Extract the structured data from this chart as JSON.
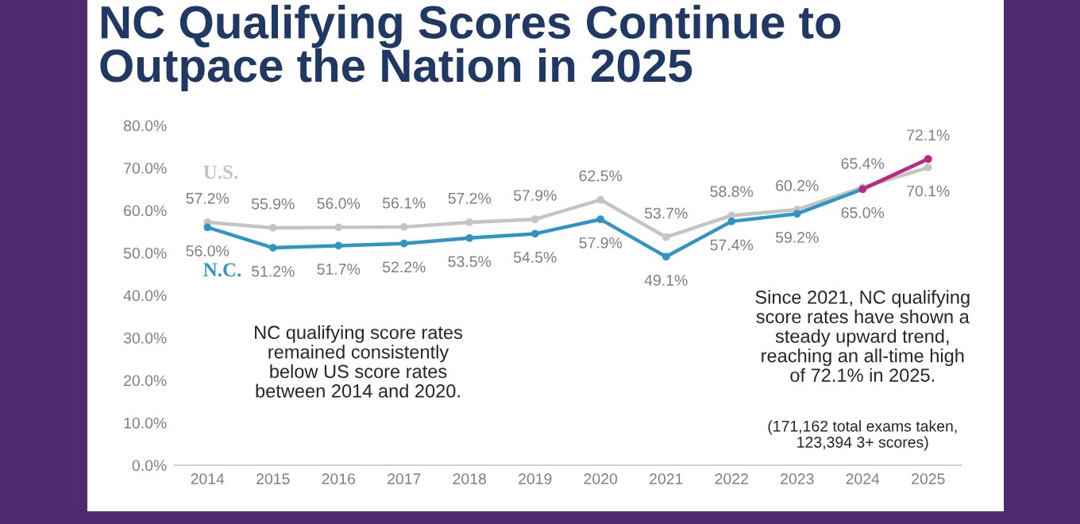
{
  "chart_data": {
    "type": "line",
    "title": "NC Qualifying Scores Continue to Outpace the Nation in 2025",
    "categories": [
      "2014",
      "2015",
      "2016",
      "2017",
      "2018",
      "2019",
      "2020",
      "2021",
      "2022",
      "2023",
      "2024",
      "2025"
    ],
    "series": [
      {
        "name": "U.S.",
        "color": "#c4c4c4",
        "values": [
          57.2,
          55.9,
          56.0,
          56.1,
          57.2,
          57.9,
          62.5,
          53.7,
          58.8,
          60.2,
          65.4,
          70.1
        ],
        "value_labels": [
          "57.2%",
          "55.9%",
          "56.0%",
          "56.1%",
          "57.2%",
          "57.9%",
          "62.5%",
          "53.7%",
          "58.8%",
          "60.2%",
          "65.4%",
          "70.1%"
        ]
      },
      {
        "name": "N.C.",
        "color": "#2e95c4",
        "colors": [
          "#2e95c4",
          "#2e95c4",
          "#2e95c4",
          "#2e95c4",
          "#2e95c4",
          "#2e95c4",
          "#2e95c4",
          "#2e95c4",
          "#2e95c4",
          "#2e95c4",
          "#2e95c4",
          "#c2267c"
        ],
        "values": [
          56.0,
          51.2,
          51.7,
          52.2,
          53.5,
          54.5,
          57.9,
          49.1,
          57.4,
          59.2,
          65.0,
          72.1
        ],
        "value_labels": [
          "56.0%",
          "51.2%",
          "51.7%",
          "52.2%",
          "53.5%",
          "54.5%",
          "57.9%",
          "49.1%",
          "57.4%",
          "59.2%",
          "65.0%",
          "72.1%"
        ]
      }
    ],
    "ylim": [
      0,
      80
    ],
    "yticks": [
      {
        "value": 0,
        "label": "0.0%"
      },
      {
        "value": 10,
        "label": "10.0%"
      },
      {
        "value": 20,
        "label": "20.0%"
      },
      {
        "value": 30,
        "label": "30.0%"
      },
      {
        "value": 40,
        "label": "40.0%"
      },
      {
        "value": 50,
        "label": "50.0%"
      },
      {
        "value": 60,
        "label": "60.0%"
      },
      {
        "value": 70,
        "label": "70.0%"
      },
      {
        "value": 80,
        "label": "80.0%"
      }
    ],
    "marker": "circle",
    "line_style": "solid",
    "grid": false,
    "legend": false,
    "annotations": [
      "NC qualifying score rates remained consistently below US score rates between 2014 and 2020.",
      "Since 2021, NC qualifying score rates have shown a steady upward trend, reaching an all-time high of 72.1% in 2025.",
      "(171,162 total exams taken, 123,394 3+ scores)"
    ]
  }
}
